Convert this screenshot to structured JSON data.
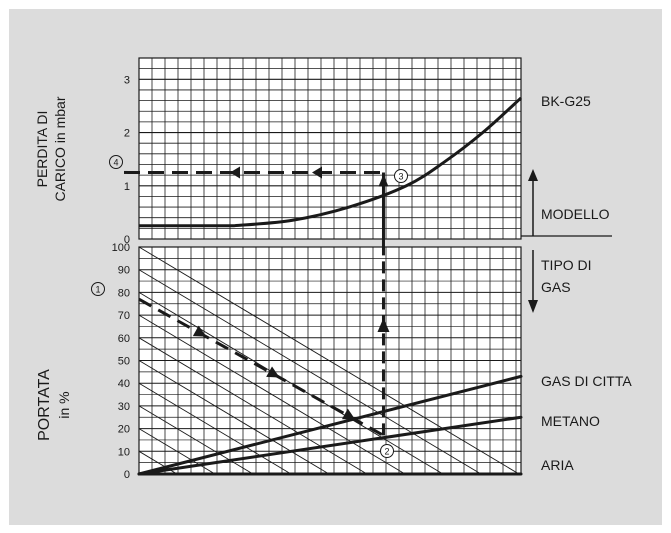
{
  "colors": {
    "panel": "#dcdcdc",
    "plot": "#ffffff",
    "ink": "#1a1a1a"
  },
  "labels": {
    "top_ylabel": [
      "PERDITA DI",
      "CARICO in mbar"
    ],
    "bottom_ylabel": [
      "PORTATA",
      "in %"
    ],
    "model": "BK-G25",
    "modello": "MODELLO",
    "tipo_di_gas": [
      "TIPO DI",
      "GAS"
    ],
    "gas_di_citta": "GAS DI CITTA",
    "metano": "METANO",
    "aria": "ARIA",
    "step1": "1",
    "step2": "2",
    "step3": "3",
    "step4": "4"
  },
  "chart_data": [
    {
      "type": "line",
      "panel": "top",
      "ylabel": "PERDITA DI CARICO in mbar",
      "ylim": [
        0,
        3.4
      ],
      "yticks": [
        0,
        1,
        2,
        3
      ],
      "grid": true,
      "series": [
        {
          "name": "BK-G25",
          "x": [
            0,
            25,
            40,
            55,
            70,
            80,
            90,
            100
          ],
          "y": [
            0.25,
            0.25,
            0.35,
            0.6,
            1.0,
            1.45,
            2.0,
            2.65
          ]
        }
      ],
      "reading": {
        "x": 64,
        "y": 1.25
      }
    },
    {
      "type": "line",
      "panel": "bottom",
      "ylabel": "PORTATA in %",
      "ylim": [
        0,
        100
      ],
      "yticks": [
        0,
        10,
        20,
        30,
        40,
        50,
        60,
        70,
        80,
        90,
        100
      ],
      "grid": true,
      "series": [
        {
          "name": "GAS DI CITTA",
          "x": [
            0,
            100
          ],
          "y": [
            0,
            43
          ]
        },
        {
          "name": "METANO",
          "x": [
            0,
            100
          ],
          "y": [
            0,
            25
          ]
        },
        {
          "name": "ARIA",
          "x": [
            0,
            100
          ],
          "y": [
            0,
            0
          ]
        }
      ],
      "reading": {
        "start_y": 77,
        "x": 64,
        "y": 17
      }
    }
  ]
}
